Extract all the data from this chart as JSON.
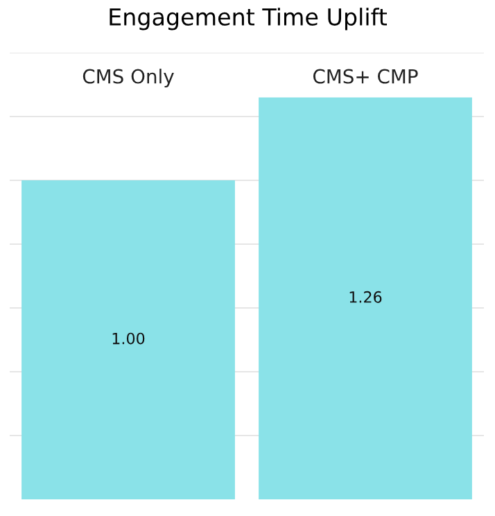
{
  "chart_data": {
    "type": "bar",
    "title": "Engagement Time Uplift",
    "categories": [
      "CMS Only",
      "CMS+ CMP"
    ],
    "values": [
      1.0,
      1.26
    ],
    "color": "#8ae2e8",
    "value_labels": [
      "1.00",
      "1.26"
    ],
    "ylim": [
      0,
      1.4
    ],
    "yticks": [
      {
        "value": 0.2,
        "label": null
      },
      {
        "value": 0.4,
        "label": null
      },
      {
        "value": 0.6,
        "label": null
      },
      {
        "value": 0.8,
        "label": null
      },
      {
        "value": 1.0,
        "label": null
      },
      {
        "value": 1.2,
        "label": null
      },
      {
        "value": 1.4,
        "label": null
      }
    ],
    "tick_labels": "x",
    "grid": "y",
    "legend": false
  }
}
